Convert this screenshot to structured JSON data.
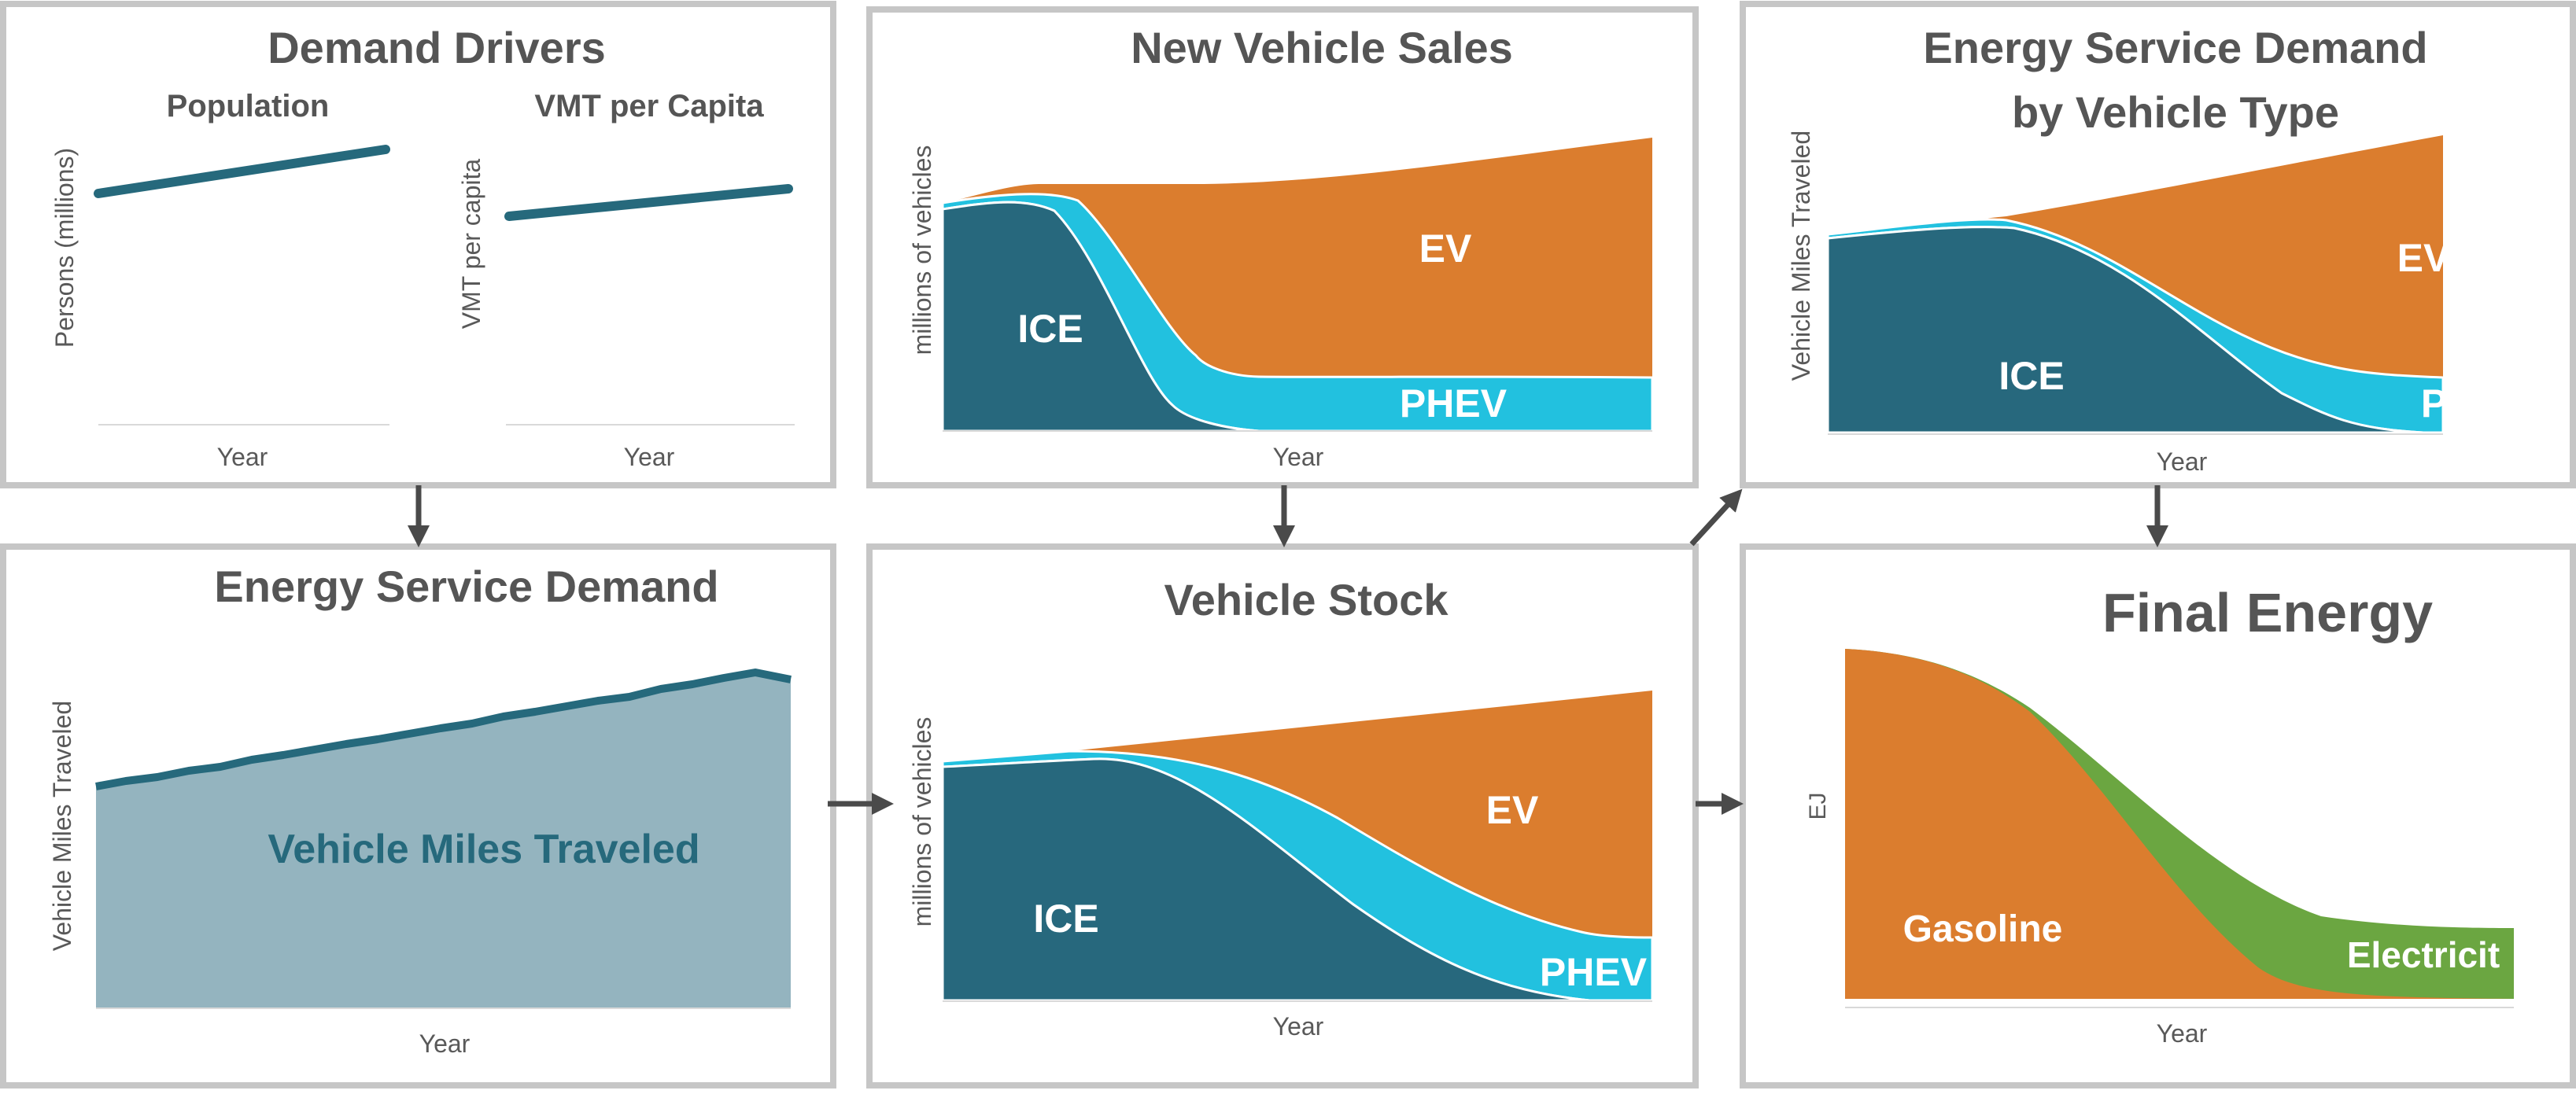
{
  "colors": {
    "ice": "#27687d",
    "phev": "#22c1df",
    "ev": "#db7d2e",
    "gasoline": "#db7d2e",
    "electricity": "#6ba641",
    "vmt_fill": "#94b4bf",
    "vmt_line": "#26697c",
    "border": "#c6c6c6",
    "arrow": "#4a4a4a",
    "title_text": "#555555",
    "axis_text": "#595959"
  },
  "demand_drivers": {
    "title": "Demand Drivers",
    "population": {
      "subtitle": "Population",
      "ylabel": "Persons (millions)",
      "xlabel": "Year"
    },
    "vmt_per_capita": {
      "subtitle": "VMT per Capita",
      "ylabel": "VMT per capita",
      "xlabel": "Year"
    }
  },
  "new_vehicle_sales": {
    "title": "New Vehicle Sales",
    "ylabel": "millions of vehicles",
    "xlabel": "Year",
    "labels": {
      "ice": "ICE",
      "phev": "PHEV",
      "ev": "EV"
    }
  },
  "energy_service_by_type": {
    "title_line1": "Energy Service Demand",
    "title_line2": "by Vehicle Type",
    "ylabel": "Vehicle Miles Traveled",
    "xlabel": "Year",
    "labels": {
      "ice": "ICE",
      "phev": "PHEV",
      "ev": "EV"
    }
  },
  "energy_service_demand": {
    "title": "Energy Service Demand",
    "ylabel": "Vehicle Miles Traveled",
    "xlabel": "Year",
    "area_label": "Vehicle Miles Traveled"
  },
  "vehicle_stock": {
    "title": "Vehicle Stock",
    "ylabel": "millions of vehicles",
    "xlabel": "Year",
    "labels": {
      "ice": "ICE",
      "phev": "PHEV",
      "ev": "EV"
    }
  },
  "final_energy": {
    "title": "Final Energy",
    "ylabel": "EJ",
    "xlabel": "Year",
    "labels": {
      "gasoline": "Gasoline",
      "electricity": "Electricit"
    }
  }
}
